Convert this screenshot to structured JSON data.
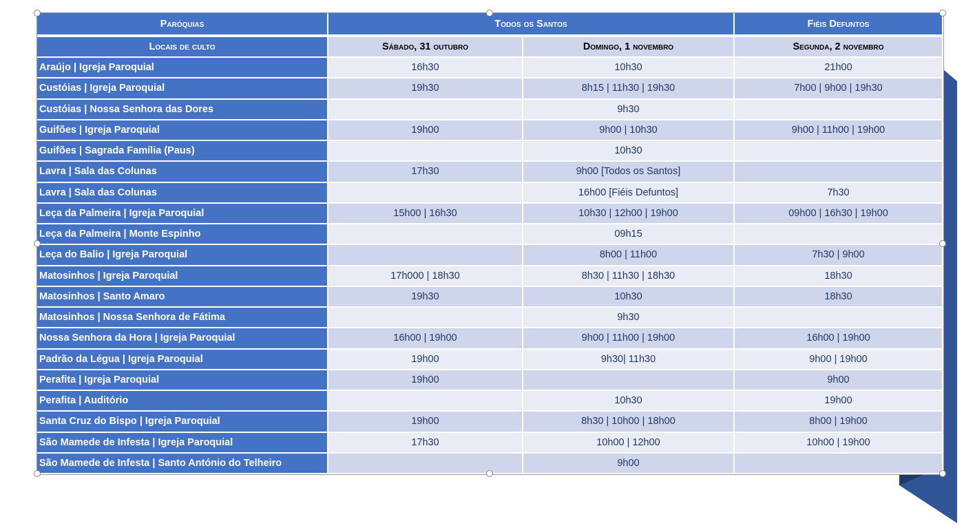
{
  "colors": {
    "header": "#4472c4",
    "row_light": "#e9ebf5",
    "row_dark": "#cfd5ea",
    "text": "#1f3864",
    "ribbon": "#2f5597"
  },
  "header": {
    "parishes": "Paróquias",
    "todos_santos": "Todos os Santos",
    "fieis_defuntos": "Fiéis Defuntos",
    "locais": "Locais de culto",
    "sabado": "Sábado, 31 outubro",
    "domingo": "Domingo, 1 novembro",
    "segunda": "Segunda, 2 novembro"
  },
  "rows": [
    {
      "name": "Araújo | Igreja Paroquial",
      "sat": "16h30",
      "sun": "10h30",
      "mon": "21h00"
    },
    {
      "name": "Custóias | Igreja Paroquial",
      "sat": "19h30",
      "sun": "8h15 | 11h30 | 19h30",
      "mon": "7h00 | 9h00 | 19h30"
    },
    {
      "name": "Custóias | Nossa Senhora das Dores",
      "sat": "",
      "sun": "9h30",
      "mon": ""
    },
    {
      "name": "Guifões | Igreja Paroquial",
      "sat": "19h00",
      "sun": "9h00 | 10h30",
      "mon": "9h00 | 11h00 | 19h00"
    },
    {
      "name": "Guifões | Sagrada Família (Paus)",
      "sat": "",
      "sun": "10h30",
      "mon": ""
    },
    {
      "name": "Lavra | Sala das Colunas",
      "sat": "17h30",
      "sun": "9h00 [Todos os Santos]",
      "mon": ""
    },
    {
      "name": "Lavra | Sala das Colunas",
      "sat": "",
      "sun": "16h00 [Fiéis Defuntos]",
      "mon": "7h30"
    },
    {
      "name": "Leça da Palmeira | Igreja Paroquial",
      "sat": "15h00 | 16h30",
      "sun": "10h30 | 12h00 | 19h00",
      "mon": "09h00 | 16h30 | 19h00"
    },
    {
      "name": "Leça da Palmeira | Monte Espinho",
      "sat": "",
      "sun": "09h15",
      "mon": ""
    },
    {
      "name": "Leça do Balio | Igreja Paroquial",
      "sat": "",
      "sun": "8h00 | 11h00",
      "mon": "7h30 | 9h00"
    },
    {
      "name": "Matosinhos | Igreja Paroquial",
      "sat": "17h000 | 18h30",
      "sun": "8h30 | 11h30 | 18h30",
      "mon": "18h30"
    },
    {
      "name": "Matosinhos | Santo Amaro",
      "sat": "19h30",
      "sun": "10h30",
      "mon": "18h30"
    },
    {
      "name": "Matosinhos | Nossa Senhora de Fátima",
      "sat": "",
      "sun": "9h30",
      "mon": ""
    },
    {
      "name": "Nossa Senhora da Hora | Igreja Paroquial",
      "sat": "16h00 | 19h00",
      "sun": "9h00 | 11h00 | 19h00",
      "mon": "16h00 | 19h00"
    },
    {
      "name": "Padrão da Légua | Igreja Paroquial",
      "sat": "19h00",
      "sun": "9h30| 11h30",
      "mon": "9h00 | 19h00"
    },
    {
      "name": "Perafita | Igreja Paroquial",
      "sat": "19h00",
      "sun": "",
      "mon": "9h00"
    },
    {
      "name": "Perafita | Auditório",
      "sat": "",
      "sun": "10h30",
      "mon": "19h00"
    },
    {
      "name": "Santa Cruz do Bispo | Igreja Paroquial",
      "sat": "19h00",
      "sun": "8h30 | 10h00 | 18h00",
      "mon": "8h00 | 19h00"
    },
    {
      "name": "São Mamede de Infesta | Igreja Paroquial",
      "sat": "17h30",
      "sun": "10h00 | 12h00",
      "mon": "10h00 | 19h00"
    },
    {
      "name": "São Mamede de Infesta | Santo António do Telheiro",
      "sat": "",
      "sun": "9h00",
      "mon": ""
    }
  ]
}
